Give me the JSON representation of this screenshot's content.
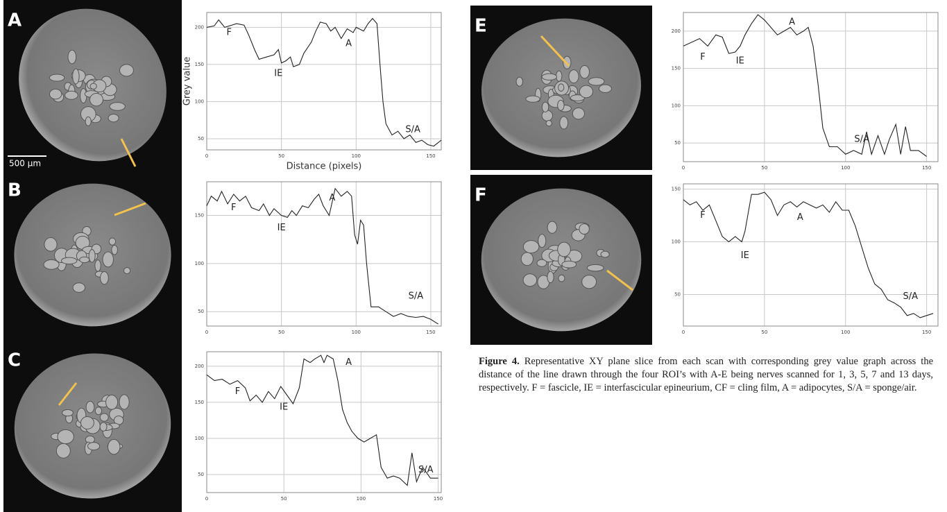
{
  "panels": [
    {
      "label": "A",
      "scale_bar": "500 µm"
    },
    {
      "label": "B"
    },
    {
      "label": "C"
    },
    {
      "label": "E"
    },
    {
      "label": "F"
    }
  ],
  "chart_data": [
    {
      "type": "line",
      "color": "#222222",
      "ylabel": "Grey value",
      "xlabel": "Distance (pixels)",
      "xlim": [
        0,
        157
      ],
      "xticks": [
        0,
        50,
        100,
        150
      ],
      "ylim": [
        35,
        220
      ],
      "yticks": [
        50,
        100,
        150,
        200
      ],
      "grid": true,
      "annotations": [
        "F",
        "IE",
        "A",
        "S/A"
      ],
      "x": [
        0,
        5,
        8,
        12,
        20,
        25,
        28,
        32,
        35,
        40,
        45,
        48,
        50,
        53,
        56,
        58,
        62,
        65,
        70,
        73,
        76,
        80,
        83,
        86,
        90,
        94,
        98,
        100,
        105,
        108,
        111,
        114,
        116,
        118,
        120,
        124,
        128,
        132,
        136,
        140,
        144,
        148,
        152,
        157
      ],
      "values": [
        200,
        202,
        210,
        200,
        205,
        203,
        190,
        170,
        157,
        160,
        163,
        170,
        152,
        155,
        160,
        147,
        150,
        165,
        180,
        195,
        207,
        205,
        195,
        200,
        185,
        198,
        193,
        200,
        195,
        205,
        212,
        205,
        150,
        100,
        70,
        55,
        60,
        50,
        55,
        45,
        48,
        42,
        40,
        48
      ]
    },
    {
      "type": "line",
      "color": "#222222",
      "xlim": [
        0,
        157
      ],
      "xticks": [
        0,
        50,
        100,
        150
      ],
      "ylim": [
        35,
        185
      ],
      "yticks": [
        50,
        100,
        150
      ],
      "grid": true,
      "annotations": [
        "F",
        "IE",
        "A",
        "S/A"
      ],
      "x": [
        0,
        3,
        7,
        10,
        14,
        18,
        22,
        26,
        30,
        35,
        38,
        42,
        45,
        50,
        54,
        57,
        60,
        64,
        68,
        72,
        75,
        78,
        82,
        86,
        90,
        94,
        97,
        99,
        101,
        103,
        105,
        107,
        110,
        115,
        120,
        125,
        130,
        135,
        140,
        145,
        150,
        155
      ],
      "values": [
        160,
        170,
        165,
        175,
        162,
        172,
        165,
        170,
        158,
        155,
        162,
        150,
        157,
        150,
        148,
        155,
        150,
        160,
        158,
        167,
        172,
        160,
        150,
        178,
        170,
        175,
        170,
        130,
        120,
        145,
        140,
        100,
        55,
        55,
        50,
        45,
        48,
        45,
        44,
        45,
        42,
        37
      ]
    },
    {
      "type": "line",
      "color": "#222222",
      "xlim": [
        0,
        152
      ],
      "xticks": [
        0,
        50,
        100,
        150
      ],
      "ylim": [
        25,
        220
      ],
      "yticks": [
        50,
        100,
        150,
        200
      ],
      "grid": true,
      "annotations": [
        "F",
        "IE",
        "A",
        "S/A"
      ],
      "x": [
        0,
        5,
        10,
        15,
        20,
        25,
        28,
        32,
        36,
        40,
        44,
        48,
        52,
        56,
        60,
        63,
        67,
        70,
        74,
        76,
        78,
        82,
        85,
        88,
        91,
        94,
        98,
        102,
        106,
        110,
        113,
        117,
        121,
        125,
        130,
        133,
        136,
        140,
        145,
        150
      ],
      "values": [
        188,
        180,
        182,
        175,
        180,
        170,
        152,
        160,
        150,
        165,
        155,
        172,
        160,
        148,
        170,
        210,
        205,
        210,
        215,
        205,
        215,
        210,
        180,
        140,
        122,
        110,
        100,
        95,
        100,
        105,
        60,
        45,
        48,
        45,
        35,
        80,
        40,
        60,
        45,
        45
      ]
    },
    {
      "type": "line",
      "color": "#222222",
      "xlim": [
        0,
        157
      ],
      "xticks": [
        0,
        50,
        100,
        150
      ],
      "ylim": [
        25,
        225
      ],
      "yticks": [
        50,
        100,
        150,
        200
      ],
      "grid": true,
      "annotations": [
        "F",
        "IE",
        "A",
        "S/A"
      ],
      "x": [
        0,
        5,
        10,
        15,
        20,
        24,
        28,
        32,
        35,
        38,
        42,
        46,
        50,
        54,
        58,
        62,
        66,
        70,
        74,
        77,
        80,
        83,
        86,
        90,
        95,
        100,
        105,
        110,
        113,
        116,
        120,
        124,
        127,
        131,
        134,
        137,
        140,
        145,
        150
      ],
      "values": [
        180,
        185,
        190,
        180,
        195,
        192,
        170,
        172,
        180,
        195,
        210,
        222,
        215,
        205,
        195,
        200,
        205,
        195,
        200,
        205,
        180,
        130,
        70,
        45,
        45,
        35,
        40,
        35,
        65,
        35,
        60,
        35,
        55,
        75,
        35,
        72,
        40,
        40,
        32
      ]
    },
    {
      "type": "line",
      "color": "#222222",
      "xlim": [
        0,
        157
      ],
      "xticks": [
        0,
        50,
        100,
        150
      ],
      "ylim": [
        20,
        155
      ],
      "yticks": [
        50,
        100,
        150
      ],
      "grid": true,
      "annotations": [
        "F",
        "IE",
        "A",
        "S/A"
      ],
      "x": [
        0,
        4,
        8,
        12,
        16,
        20,
        24,
        28,
        32,
        36,
        38,
        42,
        46,
        50,
        54,
        58,
        62,
        66,
        70,
        74,
        78,
        82,
        86,
        90,
        94,
        98,
        102,
        106,
        110,
        114,
        118,
        122,
        126,
        130,
        134,
        138,
        142,
        146,
        150,
        154
      ],
      "values": [
        140,
        135,
        138,
        130,
        135,
        120,
        105,
        100,
        105,
        100,
        110,
        145,
        145,
        147,
        140,
        125,
        135,
        138,
        133,
        138,
        135,
        132,
        135,
        128,
        138,
        130,
        130,
        115,
        95,
        75,
        60,
        55,
        45,
        42,
        38,
        30,
        32,
        28,
        30,
        32
      ]
    }
  ],
  "caption": {
    "bold": "Figure 4.",
    "text": "Representative XY plane slice from each scan with corresponding grey value graph across the distance of the line drawn through the four ROI’s with A-E being nerves scanned for 1, 3, 5, 7 and 13 days, respectively. F = fascicle, IE = interfascicular epineurium, CF = cling film, A = adipocytes, S/A = sponge/air."
  }
}
